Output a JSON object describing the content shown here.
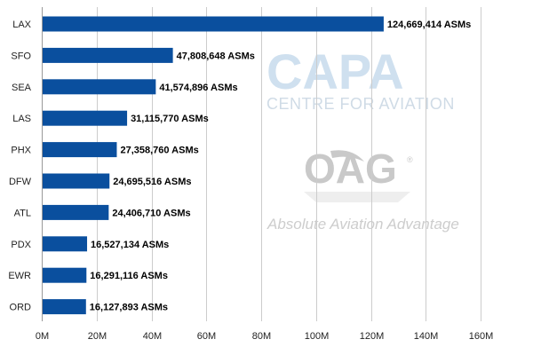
{
  "watermarks": {
    "capa_logo": "CAPA",
    "capa_sub": "CENTRE FOR AVIATION",
    "oag_logo": "OAG",
    "oag_reg": "®",
    "oag_tagline": "Absolute Aviation Advantage"
  },
  "chart_data": {
    "type": "bar",
    "orientation": "horizontal",
    "categories": [
      "LAX",
      "SFO",
      "SEA",
      "LAS",
      "PHX",
      "DFW",
      "ATL",
      "PDX",
      "EWR",
      "ORD"
    ],
    "values": [
      124669414,
      47808648,
      41574896,
      31115770,
      27358760,
      24695516,
      24406710,
      16527134,
      16291116,
      16127893
    ],
    "data_labels": [
      "124,669,414 ASMs",
      "47,808,648 ASMs",
      "41,574,896 ASMs",
      "31,115,770 ASMs",
      "27,358,760 ASMs",
      "24,695,516 ASMs",
      "24,406,710 ASMs",
      "16,527,134 ASMs",
      "16,291,116 ASMs",
      "16,127,893 ASMs"
    ],
    "x_ticks": [
      0,
      20000000,
      40000000,
      60000000,
      80000000,
      100000000,
      120000000,
      140000000,
      160000000
    ],
    "x_tick_labels": [
      "0M",
      "20M",
      "40M",
      "60M",
      "80M",
      "100M",
      "120M",
      "140M",
      "160M"
    ],
    "xlim": [
      0,
      160000000
    ],
    "grid": "vertical",
    "bar_color": "#0a4f9e",
    "grid_color": "#cccccc",
    "title": "",
    "xlabel": "",
    "ylabel": ""
  }
}
